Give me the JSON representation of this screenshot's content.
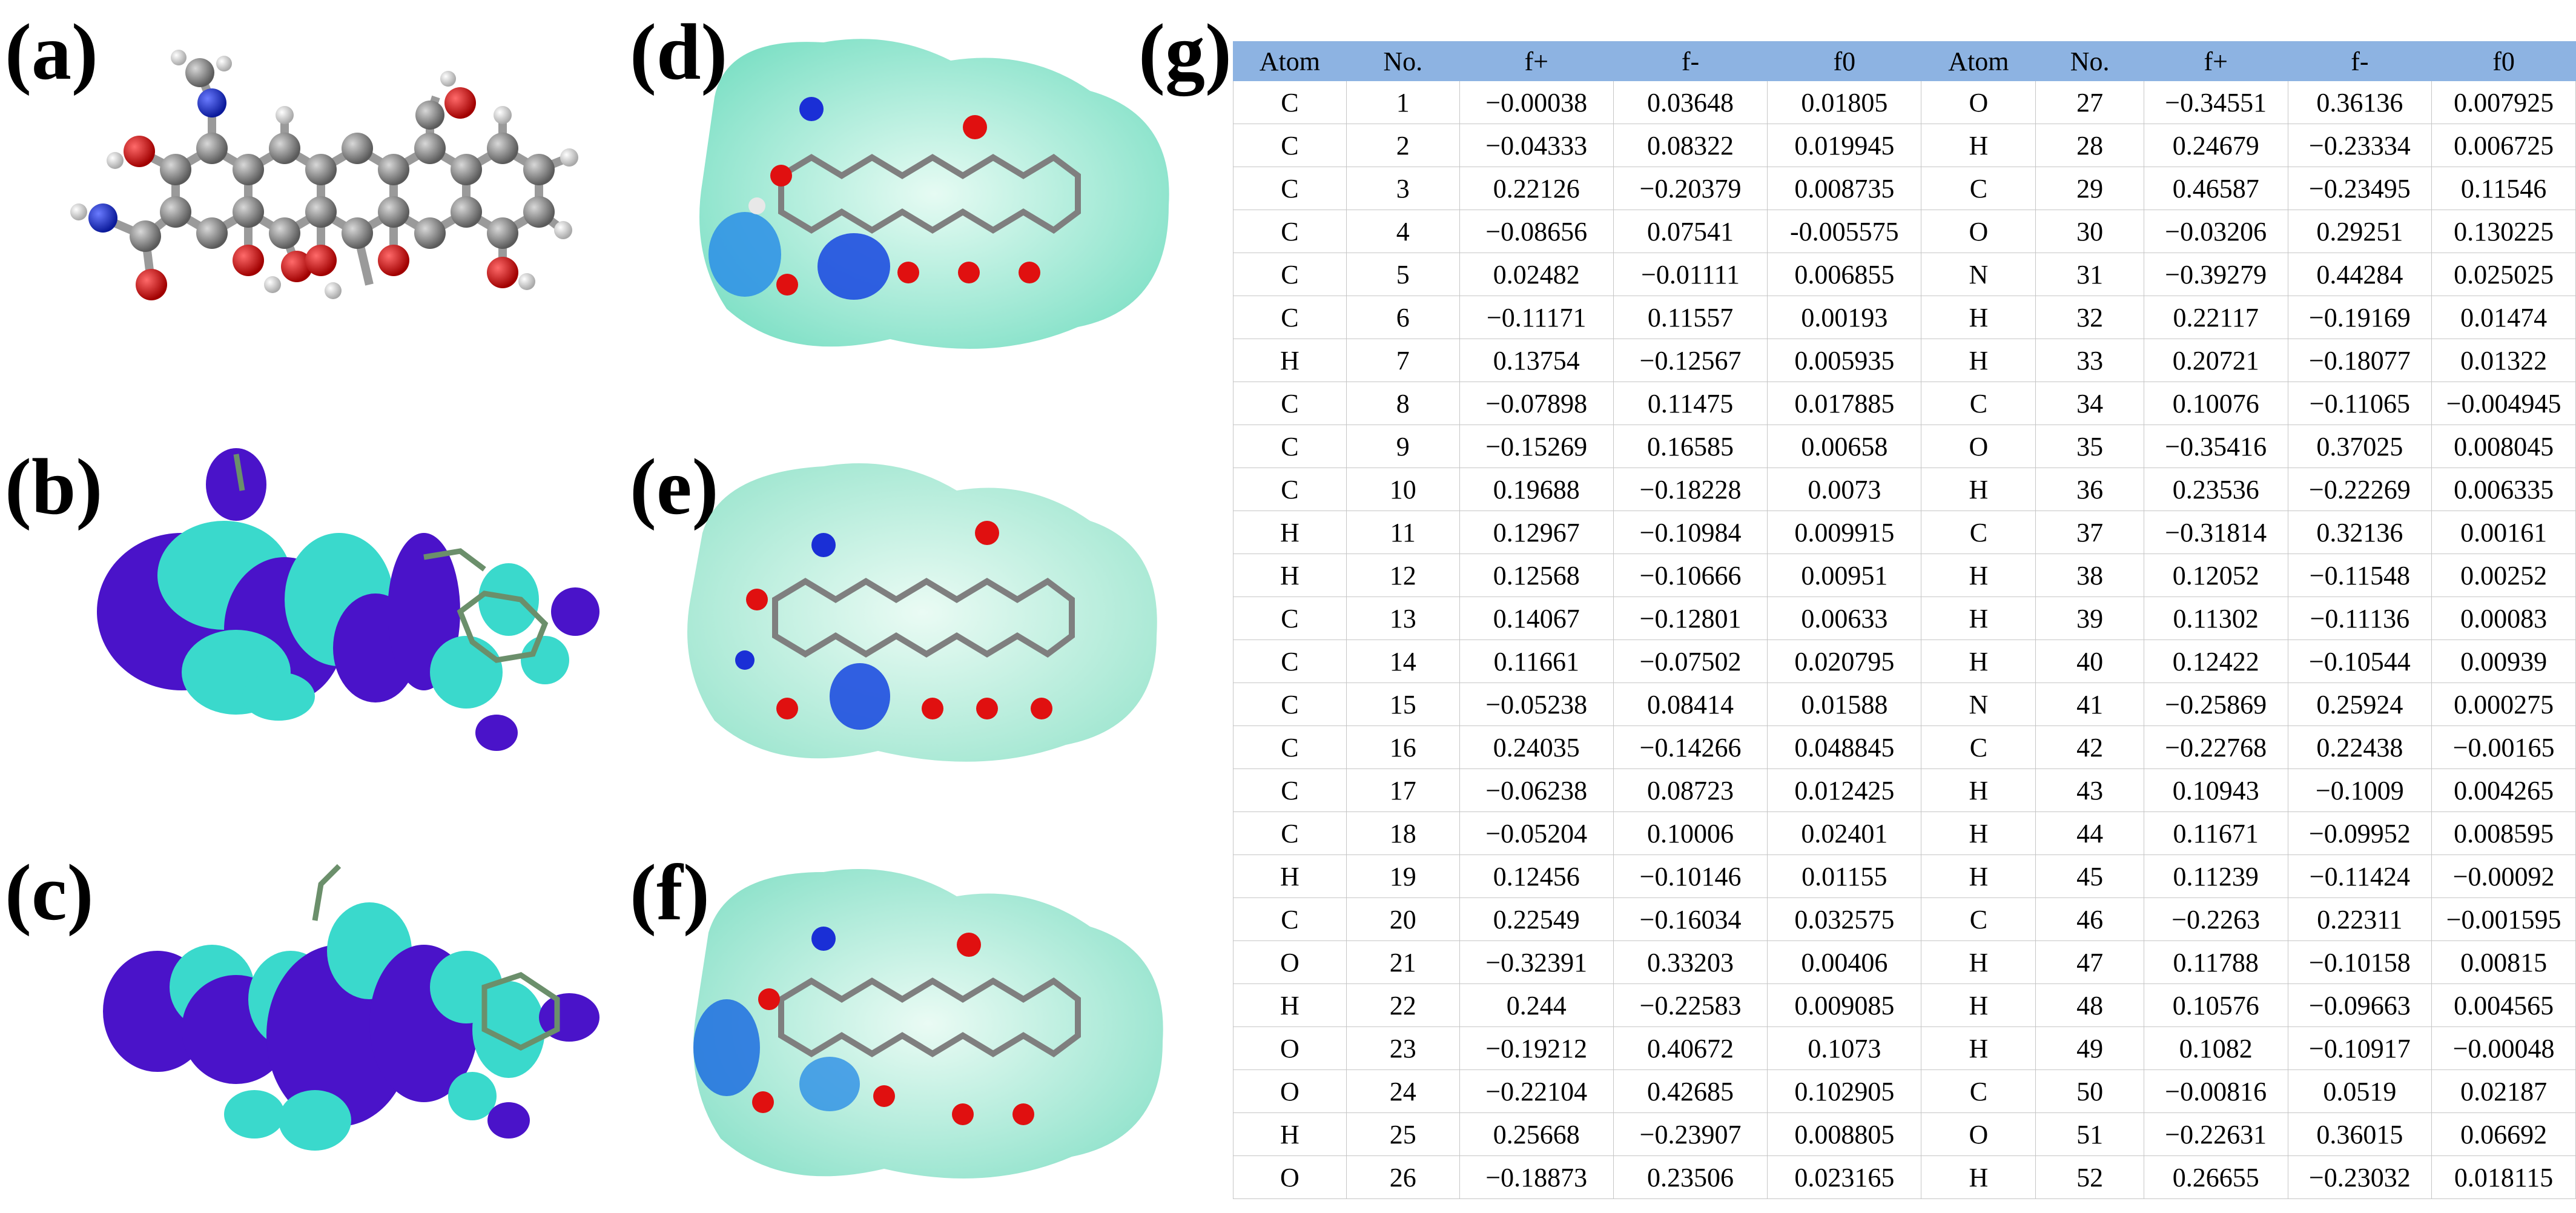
{
  "panels": {
    "a": "(a)",
    "b": "(b)",
    "c": "(c)",
    "d": "(d)",
    "e": "(e)",
    "f": "(f)",
    "g": "(g)"
  },
  "colors": {
    "carbon": "#7f7f7f",
    "oxygen": "#e01010",
    "nitrogen": "#1a2fd6",
    "hydrogen": "#e8e8e8",
    "orbital_pos": "#3ad9cc",
    "orbital_neg": "#4a13c9",
    "surface": "#bfefe0",
    "surface_blue": "#1f6fe0",
    "header_bg": "#8db3e2"
  },
  "table": {
    "headers": [
      "Atom",
      "No.",
      "f+",
      "f-",
      "f0",
      "Atom",
      "No.",
      "f+",
      "f-",
      "f0"
    ],
    "rows": [
      [
        "C",
        "1",
        "−0.00038",
        "0.03648",
        "0.01805",
        "O",
        "27",
        "−0.34551",
        "0.36136",
        "0.007925"
      ],
      [
        "C",
        "2",
        "−0.04333",
        "0.08322",
        "0.019945",
        "H",
        "28",
        "0.24679",
        "−0.23334",
        "0.006725"
      ],
      [
        "C",
        "3",
        "0.22126",
        "−0.20379",
        "0.008735",
        "C",
        "29",
        "0.46587",
        "−0.23495",
        "0.11546"
      ],
      [
        "C",
        "4",
        "−0.08656",
        "0.07541",
        "-0.005575",
        "O",
        "30",
        "−0.03206",
        "0.29251",
        "0.130225"
      ],
      [
        "C",
        "5",
        "0.02482",
        "−0.01111",
        "0.006855",
        "N",
        "31",
        "−0.39279",
        "0.44284",
        "0.025025"
      ],
      [
        "C",
        "6",
        "−0.11171",
        "0.11557",
        "0.00193",
        "H",
        "32",
        "0.22117",
        "−0.19169",
        "0.01474"
      ],
      [
        "H",
        "7",
        "0.13754",
        "−0.12567",
        "0.005935",
        "H",
        "33",
        "0.20721",
        "−0.18077",
        "0.01322"
      ],
      [
        "C",
        "8",
        "−0.07898",
        "0.11475",
        "0.017885",
        "C",
        "34",
        "0.10076",
        "−0.11065",
        "−0.004945"
      ],
      [
        "C",
        "9",
        "−0.15269",
        "0.16585",
        "0.00658",
        "O",
        "35",
        "−0.35416",
        "0.37025",
        "0.008045"
      ],
      [
        "C",
        "10",
        "0.19688",
        "−0.18228",
        "0.0073",
        "H",
        "36",
        "0.23536",
        "−0.22269",
        "0.006335"
      ],
      [
        "H",
        "11",
        "0.12967",
        "−0.10984",
        "0.009915",
        "C",
        "37",
        "−0.31814",
        "0.32136",
        "0.00161"
      ],
      [
        "H",
        "12",
        "0.12568",
        "−0.10666",
        "0.00951",
        "H",
        "38",
        "0.12052",
        "−0.11548",
        "0.00252"
      ],
      [
        "C",
        "13",
        "0.14067",
        "−0.12801",
        "0.00633",
        "H",
        "39",
        "0.11302",
        "−0.11136",
        "0.00083"
      ],
      [
        "C",
        "14",
        "0.11661",
        "−0.07502",
        "0.020795",
        "H",
        "40",
        "0.12422",
        "−0.10544",
        "0.00939"
      ],
      [
        "C",
        "15",
        "−0.05238",
        "0.08414",
        "0.01588",
        "N",
        "41",
        "−0.25869",
        "0.25924",
        "0.000275"
      ],
      [
        "C",
        "16",
        "0.24035",
        "−0.14266",
        "0.048845",
        "C",
        "42",
        "−0.22768",
        "0.22438",
        "−0.00165"
      ],
      [
        "C",
        "17",
        "−0.06238",
        "0.08723",
        "0.012425",
        "H",
        "43",
        "0.10943",
        "−0.1009",
        "0.004265"
      ],
      [
        "C",
        "18",
        "−0.05204",
        "0.10006",
        "0.02401",
        "H",
        "44",
        "0.11671",
        "−0.09952",
        "0.008595"
      ],
      [
        "H",
        "19",
        "0.12456",
        "−0.10146",
        "0.01155",
        "H",
        "45",
        "0.11239",
        "−0.11424",
        "−0.00092"
      ],
      [
        "C",
        "20",
        "0.22549",
        "−0.16034",
        "0.032575",
        "C",
        "46",
        "−0.2263",
        "0.22311",
        "−0.001595"
      ],
      [
        "O",
        "21",
        "−0.32391",
        "0.33203",
        "0.00406",
        "H",
        "47",
        "0.11788",
        "−0.10158",
        "0.00815"
      ],
      [
        "H",
        "22",
        "0.244",
        "−0.22583",
        "0.009085",
        "H",
        "48",
        "0.10576",
        "−0.09663",
        "0.004565"
      ],
      [
        "O",
        "23",
        "−0.19212",
        "0.40672",
        "0.1073",
        "H",
        "49",
        "0.1082",
        "−0.10917",
        "−0.00048"
      ],
      [
        "O",
        "24",
        "−0.22104",
        "0.42685",
        "0.102905",
        "C",
        "50",
        "−0.00816",
        "0.0519",
        "0.02187"
      ],
      [
        "H",
        "25",
        "0.25668",
        "−0.23907",
        "0.008805",
        "O",
        "51",
        "−0.22631",
        "0.36015",
        "0.06692"
      ],
      [
        "O",
        "26",
        "−0.18873",
        "0.23506",
        "0.023165",
        "H",
        "52",
        "0.26655",
        "−0.23032",
        "0.018115"
      ]
    ]
  }
}
